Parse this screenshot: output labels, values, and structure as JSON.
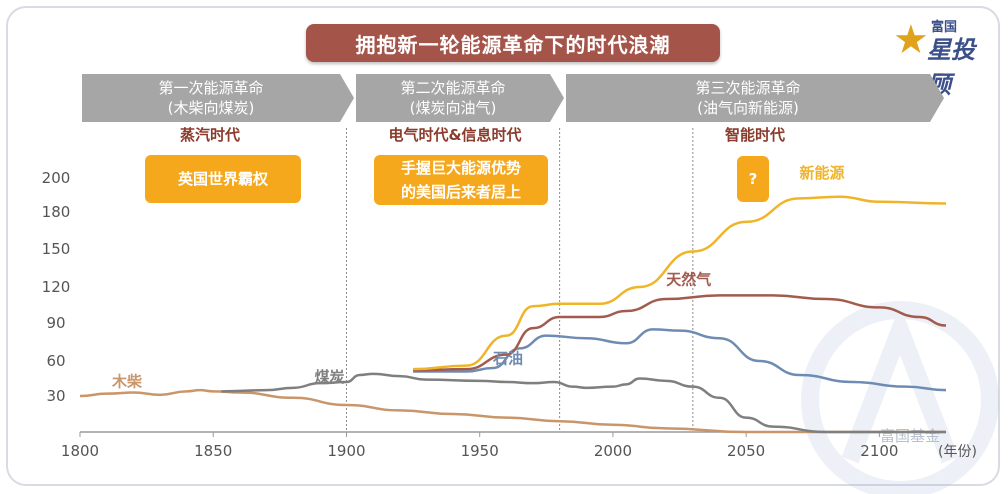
{
  "title": "拥抱新一轮能源革命下的时代浪潮",
  "logo": {
    "small": "富国",
    "big": "投顾",
    "star": "星"
  },
  "eras": [
    {
      "line1": "第一次能源革命",
      "line2": "(木柴向煤炭)",
      "age": "蒸汽时代"
    },
    {
      "line1": "第二次能源革命",
      "line2": "(煤炭向油气)",
      "age": "电气时代&信息时代"
    },
    {
      "line1": "第三次能源革命",
      "line2": "(油气向新能源)",
      "age": "智能时代"
    }
  ],
  "callouts": [
    {
      "text": "英国世界霸权"
    },
    {
      "line1": "手握巨大能源优势",
      "line2": "的美国后来者居上"
    },
    {
      "text": "?"
    }
  ],
  "watermark": "富国基金",
  "colors": {
    "title_bg": "#a5544a",
    "era_arrow": "#a6a6a6",
    "callout": "#f5a81c",
    "age_text": "#8b3b2c"
  },
  "chart_data": {
    "type": "line",
    "x_unit_label": "(年份)",
    "xlim": [
      1800,
      2125
    ],
    "x_ticks": [
      1800,
      1850,
      1900,
      1950,
      2000,
      2050,
      2100
    ],
    "y_ticks": [
      30,
      60,
      90,
      120,
      150,
      180,
      200
    ],
    "ylim": [
      10,
      210
    ],
    "y_scale": "nonuniform",
    "y_tick_mapping": [
      [
        10,
        0
      ],
      [
        30,
        30
      ],
      [
        60,
        60
      ],
      [
        90,
        90
      ],
      [
        120,
        120
      ],
      [
        150,
        150
      ],
      [
        180,
        180
      ],
      [
        200,
        200
      ],
      [
        210,
        210
      ]
    ],
    "era_dividers": [
      1900,
      1980,
      2030
    ],
    "series": [
      {
        "name": "木柴",
        "color": "#c9956b",
        "points": [
          [
            1800,
            30
          ],
          [
            1810,
            32
          ],
          [
            1820,
            33
          ],
          [
            1830,
            31
          ],
          [
            1840,
            34
          ],
          [
            1845,
            35
          ],
          [
            1850,
            34
          ],
          [
            1860,
            33
          ],
          [
            1880,
            29
          ],
          [
            1900,
            25
          ],
          [
            1920,
            22
          ],
          [
            1940,
            20
          ],
          [
            1960,
            18
          ],
          [
            1980,
            16
          ],
          [
            2000,
            14
          ],
          [
            2020,
            12
          ],
          [
            2050,
            10
          ],
          [
            2080,
            9
          ],
          [
            2100,
            8
          ],
          [
            2125,
            7
          ]
        ]
      },
      {
        "name": "煤炭",
        "color": "#7f7f7f",
        "points": [
          [
            1853,
            34
          ],
          [
            1870,
            35
          ],
          [
            1880,
            37
          ],
          [
            1890,
            41
          ],
          [
            1900,
            42
          ],
          [
            1905,
            48
          ],
          [
            1910,
            49
          ],
          [
            1920,
            47
          ],
          [
            1930,
            44
          ],
          [
            1950,
            43
          ],
          [
            1960,
            42
          ],
          [
            1970,
            41
          ],
          [
            1978,
            42
          ],
          [
            1985,
            38
          ],
          [
            1990,
            37
          ],
          [
            2000,
            38
          ],
          [
            2005,
            40
          ],
          [
            2010,
            45
          ],
          [
            2020,
            43
          ],
          [
            2030,
            38
          ],
          [
            2040,
            29
          ],
          [
            2050,
            18
          ],
          [
            2060,
            13
          ],
          [
            2080,
            10
          ],
          [
            2100,
            8
          ],
          [
            2125,
            7
          ]
        ]
      },
      {
        "name": "石油",
        "color": "#6e8cb3",
        "points": [
          [
            1925,
            51
          ],
          [
            1945,
            51
          ],
          [
            1955,
            54
          ],
          [
            1965,
            70
          ],
          [
            1975,
            80
          ],
          [
            1990,
            78
          ],
          [
            2005,
            74
          ],
          [
            2015,
            85
          ],
          [
            2025,
            84
          ],
          [
            2040,
            78
          ],
          [
            2055,
            60
          ],
          [
            2070,
            48
          ],
          [
            2090,
            42
          ],
          [
            2110,
            38
          ],
          [
            2125,
            35
          ]
        ]
      },
      {
        "name": "天然气",
        "color": "#a25c4e",
        "points": [
          [
            1925,
            52
          ],
          [
            1945,
            53
          ],
          [
            1960,
            65
          ],
          [
            1970,
            86
          ],
          [
            1980,
            95
          ],
          [
            1995,
            95
          ],
          [
            2005,
            100
          ],
          [
            2020,
            110
          ],
          [
            2040,
            113
          ],
          [
            2060,
            113
          ],
          [
            2080,
            110
          ],
          [
            2100,
            103
          ],
          [
            2115,
            95
          ],
          [
            2125,
            88
          ]
        ]
      },
      {
        "name": "新能源",
        "color": "#f0b429",
        "points": [
          [
            1925,
            53
          ],
          [
            1945,
            56
          ],
          [
            1960,
            80
          ],
          [
            1970,
            104
          ],
          [
            1980,
            106
          ],
          [
            1995,
            106
          ],
          [
            2010,
            120
          ],
          [
            2030,
            148
          ],
          [
            2050,
            172
          ],
          [
            2070,
            188
          ],
          [
            2085,
            189
          ],
          [
            2100,
            186
          ],
          [
            2125,
            185
          ]
        ]
      }
    ],
    "series_label_positions": {
      "木柴": [
        1812,
        38
      ],
      "煤炭": [
        1888,
        42
      ],
      "石油": [
        1955,
        58
      ],
      "天然气": [
        2020,
        122
      ],
      "新能源": [
        2070,
        200
      ]
    }
  }
}
